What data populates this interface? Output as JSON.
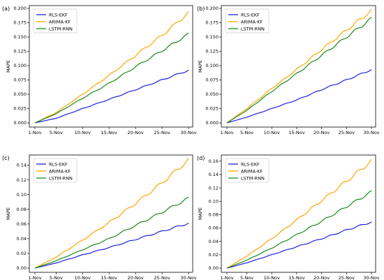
{
  "chart_data": [
    {
      "type": "line",
      "panel": "(a)",
      "ylabel": "MAPE",
      "x": [
        "1-Nov",
        "5-Nov",
        "10-Nov",
        "15-Nov",
        "20-Nov",
        "25-Nov",
        "30-Nov"
      ],
      "ylim": [
        0,
        0.2
      ],
      "yticks": [
        "0.000",
        "0.025",
        "0.050",
        "0.075",
        "0.100",
        "0.125",
        "0.150",
        "0.175",
        "0.200"
      ],
      "legend": "top-left",
      "series": [
        {
          "name": "RLS-EKF",
          "color": "#1f1fe0",
          "values": [
            0,
            0.008,
            0.025,
            0.041,
            0.058,
            0.075,
            0.092
          ]
        },
        {
          "name": "ARIMA-KF",
          "color": "#ffa500",
          "values": [
            0,
            0.018,
            0.05,
            0.083,
            0.118,
            0.153,
            0.192
          ]
        },
        {
          "name": "LSTM-RNN",
          "color": "#1a8a1a",
          "values": [
            0,
            0.016,
            0.043,
            0.069,
            0.098,
            0.126,
            0.155
          ]
        }
      ]
    },
    {
      "type": "line",
      "panel": "(b)",
      "ylabel": "MAPE",
      "x": [
        "1-Nov",
        "5-Nov",
        "10-Nov",
        "15-Nov",
        "20-Nov",
        "25-Nov",
        "30-Nov"
      ],
      "ylim": [
        0,
        0.2
      ],
      "yticks": [
        "0.000",
        "0.025",
        "0.050",
        "0.075",
        "0.100",
        "0.125",
        "0.150",
        "0.175",
        "0.200"
      ],
      "legend": "top-left",
      "series": [
        {
          "name": "RLS-EKF",
          "color": "#1f1fe0",
          "values": [
            0,
            0.01,
            0.025,
            0.04,
            0.058,
            0.075,
            0.093
          ]
        },
        {
          "name": "ARIMA-KF",
          "color": "#ffa500",
          "values": [
            0,
            0.025,
            0.06,
            0.093,
            0.128,
            0.162,
            0.196
          ]
        },
        {
          "name": "LSTM-RNN",
          "color": "#1a8a1a",
          "values": [
            0,
            0.022,
            0.055,
            0.086,
            0.118,
            0.15,
            0.182
          ]
        }
      ]
    },
    {
      "type": "line",
      "panel": "(c)",
      "ylabel": "MAPE",
      "x": [
        "1-Nov",
        "5-Nov",
        "10-Nov",
        "15-Nov",
        "20-Nov",
        "25-Nov",
        "30-Nov"
      ],
      "ylim": [
        0,
        0.15
      ],
      "yticks": [
        "0.00",
        "0.02",
        "0.04",
        "0.06",
        "0.08",
        "0.10",
        "0.12",
        "0.14"
      ],
      "legend": "top-left",
      "series": [
        {
          "name": "RLS-EKF",
          "color": "#1f1fe0",
          "values": [
            0,
            0.007,
            0.018,
            0.028,
            0.039,
            0.05,
            0.061
          ]
        },
        {
          "name": "ARIMA-KF",
          "color": "#ffa500",
          "values": [
            0,
            0.015,
            0.038,
            0.062,
            0.088,
            0.116,
            0.147
          ]
        },
        {
          "name": "LSTM-RNN",
          "color": "#1a8a1a",
          "values": [
            0,
            0.01,
            0.025,
            0.04,
            0.058,
            0.076,
            0.095
          ]
        }
      ]
    },
    {
      "type": "line",
      "panel": "(d)",
      "ylabel": "MAPE",
      "x": [
        "1-Nov",
        "5-Nov",
        "10-Nov",
        "15-Nov",
        "20-Nov",
        "25-Nov",
        "30-Nov"
      ],
      "ylim": [
        0,
        0.165
      ],
      "yticks": [
        "0.00",
        "0.02",
        "0.04",
        "0.06",
        "0.08",
        "0.10",
        "0.12",
        "0.14",
        "0.16"
      ],
      "legend": "top-left",
      "series": [
        {
          "name": "RLS-EKF",
          "color": "#1f1fe0",
          "values": [
            0,
            0.008,
            0.02,
            0.032,
            0.044,
            0.057,
            0.069
          ]
        },
        {
          "name": "ARIMA-KF",
          "color": "#ffa500",
          "values": [
            0,
            0.018,
            0.044,
            0.072,
            0.101,
            0.13,
            0.16
          ]
        },
        {
          "name": "LSTM-RNN",
          "color": "#1a8a1a",
          "values": [
            0,
            0.012,
            0.03,
            0.05,
            0.07,
            0.092,
            0.114
          ]
        }
      ]
    }
  ]
}
